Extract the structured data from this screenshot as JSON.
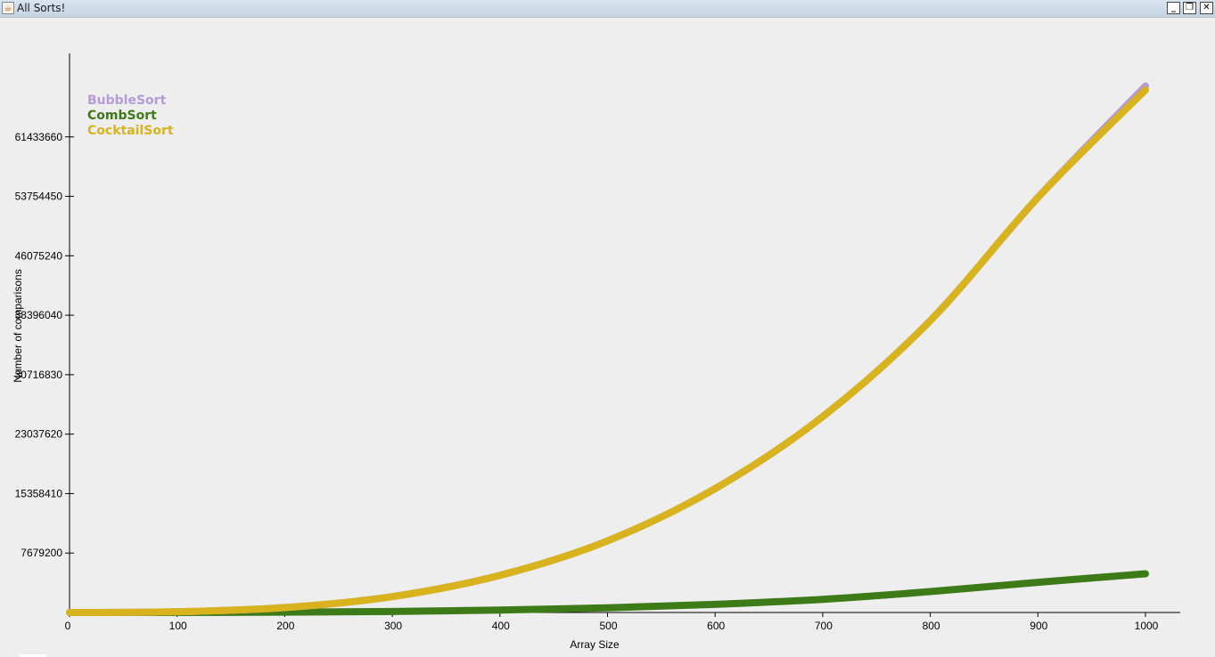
{
  "window": {
    "title": "All Sorts!",
    "minimize_label": "_",
    "maximize_label": "❐",
    "close_label": "✕"
  },
  "chart_data": {
    "type": "line",
    "xlabel": "Array Size",
    "ylabel": "Number of comparisons",
    "xlim": [
      0,
      1000
    ],
    "ylim": [
      0,
      67500000
    ],
    "x_ticks": [
      0,
      100,
      200,
      300,
      400,
      500,
      600,
      700,
      800,
      900,
      1000
    ],
    "y_ticks": [
      7679200,
      15358410,
      23037620,
      30716830,
      38396040,
      46075240,
      53754450,
      61433660
    ],
    "legend_position": "top-left",
    "series": [
      {
        "name": "BubbleSort",
        "color": "#b49ad6",
        "x": [
          0,
          100,
          200,
          300,
          400,
          500,
          600,
          700,
          800,
          900,
          1000
        ],
        "values": [
          0,
          95000,
          630000,
          2050000,
          4800000,
          9250000,
          16000000,
          25300000,
          37700000,
          53600000,
          68000000
        ]
      },
      {
        "name": "CombSort",
        "color": "#3d7a18",
        "x": [
          0,
          100,
          200,
          300,
          400,
          500,
          600,
          700,
          800,
          900,
          1000
        ],
        "values": [
          0,
          5000,
          40000,
          130000,
          310000,
          600000,
          1050000,
          1700000,
          2700000,
          3900000,
          5000000
        ]
      },
      {
        "name": "CocktailSort",
        "color": "#d9b31e",
        "x": [
          0,
          100,
          200,
          300,
          400,
          500,
          600,
          700,
          800,
          900,
          1000
        ],
        "values": [
          0,
          95000,
          630000,
          2050000,
          4800000,
          9250000,
          16000000,
          25300000,
          37700000,
          53600000,
          67500000
        ]
      }
    ]
  }
}
